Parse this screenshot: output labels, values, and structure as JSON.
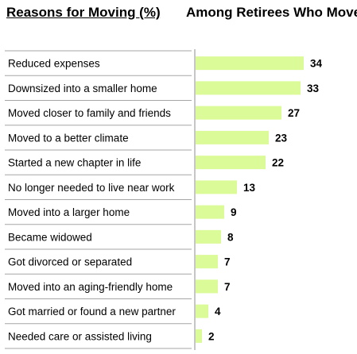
{
  "header": {
    "left_title": "Reasons for Moving (%)",
    "right_title": "Among Retirees Who Moved"
  },
  "colors": {
    "bar": "#dbfa98",
    "separator": "#a6a6a6",
    "axis": "#8c8c8c"
  },
  "chart_data": {
    "type": "bar",
    "orientation": "horizontal",
    "title": "Reasons for Moving (%)",
    "subtitle": "Among Retirees Who Moved",
    "xlabel": "",
    "ylabel": "",
    "xlim": [
      0,
      40
    ],
    "grid": false,
    "legend": "none",
    "categories": [
      "Reduced expenses",
      "Downsized into a smaller home",
      "Moved closer to family and friends",
      "Moved to a better climate",
      "Started a new chapter in life",
      "No longer needed to live near work",
      "Moved into a larger home",
      "Became widowed",
      "Got divorced or separated",
      "Moved into an aging-friendly home",
      "Got married or found a new partner",
      "Needed care or assisted living"
    ],
    "values": [
      34,
      33,
      27,
      23,
      22,
      13,
      9,
      8,
      7,
      7,
      4,
      2
    ]
  }
}
